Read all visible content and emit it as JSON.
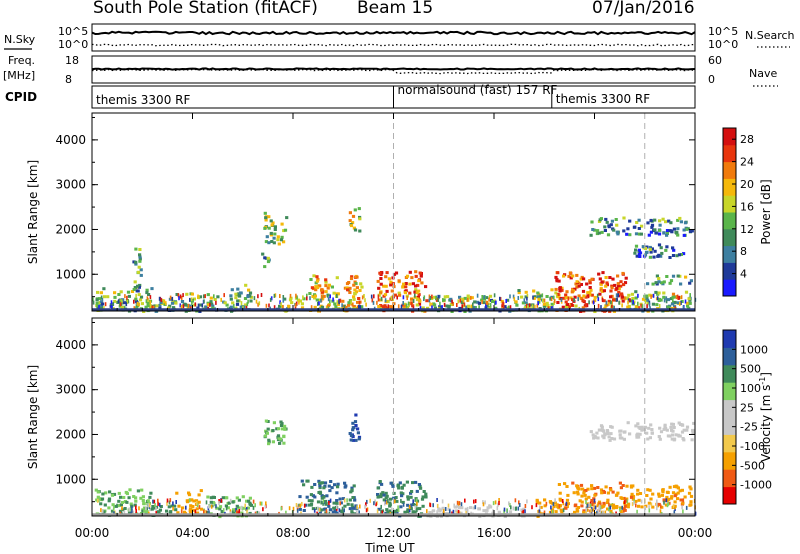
{
  "header": {
    "station": "South Pole Station (fitACF)",
    "beam": "Beam 15",
    "date": "07/Jan/2016"
  },
  "status_panels": {
    "nsky_label": "N.Sky",
    "nsky_top": "10^5",
    "nsky_bottom": "10^0",
    "nsearch_label": "N.Search",
    "nsearch_top": "10^5",
    "nsearch_bottom": "10^0",
    "freq_label": "Freq.",
    "freq_unit": "[MHz]",
    "freq_top": "18",
    "freq_bottom": "8",
    "nave_label": "Nave",
    "nave_top": "60",
    "nave_bottom": "0",
    "cpid_label": "CPID"
  },
  "cpid": [
    {
      "name": "themis 3300 RF",
      "start_hour": 0
    },
    {
      "name": "normalsound (fast) 157 RF",
      "start_hour": 12
    },
    {
      "name": "themis 3300 RF",
      "start_hour": 18.3
    }
  ],
  "colors": {
    "power_scale": [
      "#1a1aff",
      "#1f3a99",
      "#3d7fa0",
      "#3f8a5a",
      "#5ab54a",
      "#c8d629",
      "#f5b80a",
      "#f07a0c",
      "#e8350d",
      "#d40f0f"
    ],
    "velocity_scale": [
      "#e60000",
      "#f05a14",
      "#f5a000",
      "#f2c94c",
      "#c8c8c8",
      "#c8c8c8",
      "#7fd060",
      "#3f8a5a",
      "#2d5f9a",
      "#1f3ab0"
    ],
    "cpid_switch_line": "#b0b0b0"
  },
  "chart_data": [
    {
      "type": "heatmap",
      "title": "Power",
      "xlabel": "Time UT",
      "ylabel": "Slant Range [km]",
      "xlim_hours": [
        0,
        24
      ],
      "ylim_km": [
        180,
        4600
      ],
      "x_ticks": [
        "00:00",
        "04:00",
        "08:00",
        "12:00",
        "16:00",
        "20:00",
        "00:00"
      ],
      "y_ticks": [
        "1000",
        "2000",
        "3000",
        "4000"
      ],
      "colorbar": {
        "label": "Power [dB]",
        "range": [
          0,
          30
        ],
        "ticks": [
          "4",
          "8",
          "12",
          "16",
          "20",
          "24",
          "28"
        ]
      },
      "echo_regions": [
        {
          "t0": 0.1,
          "t1": 2.4,
          "r0": 200,
          "r1": 750,
          "level": 0.35
        },
        {
          "t0": 1.6,
          "t1": 1.9,
          "r0": 600,
          "r1": 1700,
          "level": 0.3
        },
        {
          "t0": 2.3,
          "t1": 4.6,
          "r0": 200,
          "r1": 600,
          "level": 0.3
        },
        {
          "t0": 4.5,
          "t1": 5.6,
          "r0": 200,
          "r1": 550,
          "level": 0.35
        },
        {
          "t0": 5.4,
          "t1": 6.3,
          "r0": 200,
          "r1": 800,
          "level": 0.3
        },
        {
          "t0": 6.8,
          "t1": 7.7,
          "r0": 1700,
          "r1": 2400,
          "level": 0.4
        },
        {
          "t0": 6.7,
          "t1": 7.0,
          "r0": 1200,
          "r1": 1600,
          "level": 0.3
        },
        {
          "t0": 7.3,
          "t1": 8.6,
          "r0": 200,
          "r1": 500,
          "level": 0.4
        },
        {
          "t0": 8.6,
          "t1": 10.7,
          "r0": 200,
          "r1": 1000,
          "level": 0.55
        },
        {
          "t0": 10.2,
          "t1": 10.6,
          "r0": 1900,
          "r1": 2500,
          "level": 0.5
        },
        {
          "t0": 11.3,
          "t1": 13.3,
          "r0": 200,
          "r1": 1100,
          "level": 0.7
        },
        {
          "t0": 13.3,
          "t1": 16.8,
          "r0": 200,
          "r1": 550,
          "level": 0.3
        },
        {
          "t0": 16.8,
          "t1": 18.4,
          "r0": 200,
          "r1": 700,
          "level": 0.4
        },
        {
          "t0": 18.4,
          "t1": 21.2,
          "r0": 200,
          "r1": 1100,
          "level": 0.75
        },
        {
          "t0": 21.2,
          "t1": 23.8,
          "r0": 200,
          "r1": 650,
          "level": 0.4
        },
        {
          "t0": 19.8,
          "t1": 23.9,
          "r0": 1900,
          "r1": 2300,
          "level": 0.25
        },
        {
          "t0": 21.5,
          "t1": 23.5,
          "r0": 1400,
          "r1": 1700,
          "level": 0.2
        },
        {
          "t0": 22.0,
          "t1": 23.8,
          "r0": 800,
          "r1": 1000,
          "level": 0.3
        }
      ]
    },
    {
      "type": "heatmap",
      "title": "Velocity",
      "xlabel": "Time UT",
      "ylabel": "Slant Range [km]",
      "xlim_hours": [
        0,
        24
      ],
      "ylim_km": [
        180,
        4600
      ],
      "x_ticks": [
        "00:00",
        "04:00",
        "08:00",
        "12:00",
        "16:00",
        "20:00",
        "00:00"
      ],
      "y_ticks": [
        "1000",
        "2000",
        "3000",
        "4000"
      ],
      "colorbar": {
        "label": "Velocity [m s^-1]",
        "ticks": [
          "1000",
          "500",
          "100",
          "25",
          "-25",
          "-100",
          "-500",
          "-1000"
        ]
      },
      "echo_regions": [
        {
          "t0": 0.1,
          "t1": 2.3,
          "r0": 200,
          "r1": 800,
          "vel": 60
        },
        {
          "t0": 2.3,
          "t1": 3.3,
          "r0": 200,
          "r1": 500,
          "vel": 150
        },
        {
          "t0": 3.3,
          "t1": 4.3,
          "r0": 250,
          "r1": 800,
          "vel": -150
        },
        {
          "t0": 4.5,
          "t1": 6.3,
          "r0": 200,
          "r1": 700,
          "vel": 60
        },
        {
          "t0": 6.8,
          "t1": 7.7,
          "r0": 1800,
          "r1": 2400,
          "vel": 60
        },
        {
          "t0": 8.2,
          "t1": 10.5,
          "r0": 250,
          "r1": 1000,
          "vel": 300
        },
        {
          "t0": 10.2,
          "t1": 10.6,
          "r0": 1900,
          "r1": 2500,
          "vel": 700
        },
        {
          "t0": 11.3,
          "t1": 13.3,
          "r0": 200,
          "r1": 1000,
          "vel": 250
        },
        {
          "t0": 13.3,
          "t1": 17.2,
          "r0": 200,
          "r1": 450,
          "vel": 10
        },
        {
          "t0": 17.5,
          "t1": 18.6,
          "r0": 200,
          "r1": 600,
          "vel": -150
        },
        {
          "t0": 18.5,
          "t1": 21.2,
          "r0": 200,
          "r1": 950,
          "vel": -250
        },
        {
          "t0": 21.2,
          "t1": 23.8,
          "r0": 400,
          "r1": 900,
          "vel": -200
        },
        {
          "t0": 19.8,
          "t1": 23.9,
          "r0": 1900,
          "r1": 2300,
          "vel": 5
        }
      ]
    }
  ]
}
